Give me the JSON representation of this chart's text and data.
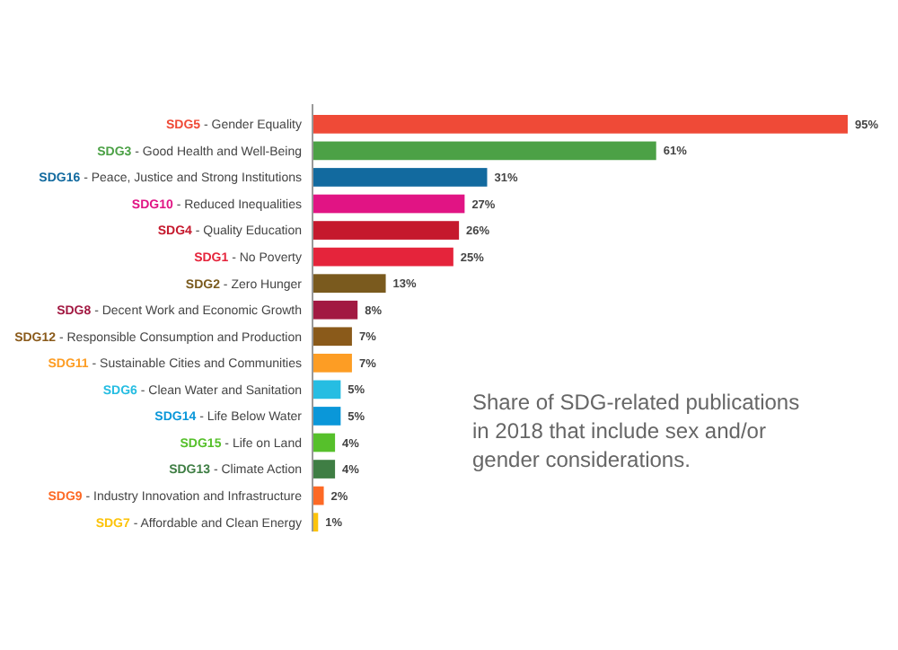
{
  "chart_data": {
    "type": "bar",
    "orientation": "horizontal",
    "categories": [
      "SDG5 - Gender Equality",
      "SDG3 - Good Health and Well-Being",
      "SDG16 - Peace, Justice and Strong Institutions",
      "SDG10 - Reduced Inequalities",
      "SDG4 - Quality Education",
      "SDG1 - No Poverty",
      "SDG2 - Zero Hunger",
      "SDG8 - Decent Work and Economic Growth",
      "SDG12 - Responsible Consumption and Production",
      "SDG11 - Sustainable Cities and Communities",
      "SDG6 - Clean Water and Sanitation",
      "SDG14 - Life Below Water",
      "SDG15 - Life on Land",
      "SDG13 - Climate Action",
      "SDG9 - Industry Innovation and Infrastructure",
      "SDG7 - Affordable and Clean Energy"
    ],
    "values": [
      95,
      61,
      31,
      27,
      26,
      25,
      13,
      8,
      7,
      7,
      5,
      5,
      4,
      4,
      2,
      1
    ],
    "value_labels": [
      "95%",
      "61%",
      "31%",
      "27%",
      "26%",
      "25%",
      "13%",
      "8%",
      "7%",
      "7%",
      "5%",
      "5%",
      "4%",
      "4%",
      "2%",
      "1%"
    ],
    "colors": [
      "#ef4a37",
      "#4ca146",
      "#126a9f",
      "#e11484",
      "#c5192d",
      "#e5243b",
      "#7a5a1e",
      "#a21942",
      "#8a5a1a",
      "#fd9d24",
      "#26bde2",
      "#0a97d9",
      "#56c02b",
      "#3f7e44",
      "#fd6925",
      "#fcc30b"
    ],
    "annotations": [
      "Share of SDG-related publications in 2018 that include sex and/or gender considerations."
    ]
  }
}
